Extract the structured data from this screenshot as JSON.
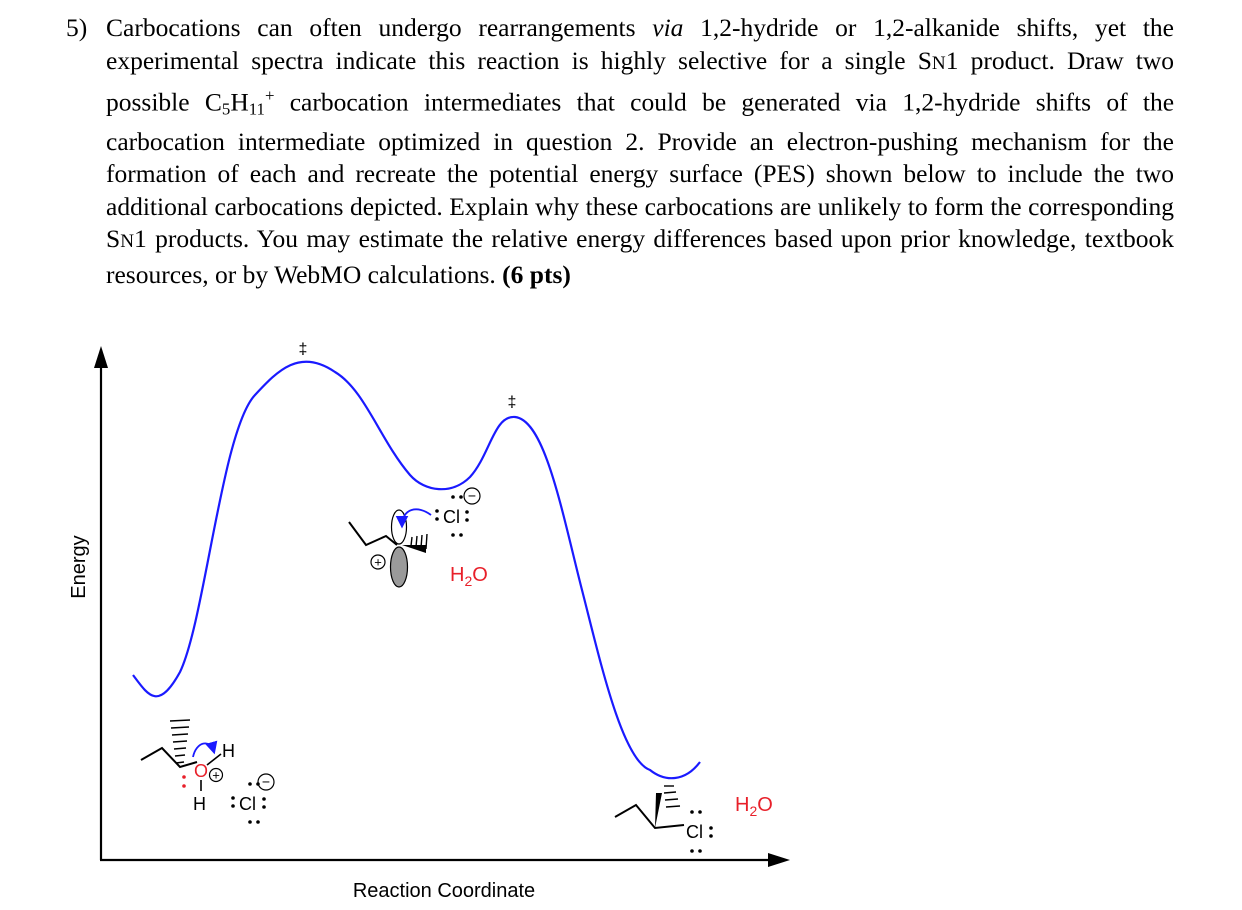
{
  "question": {
    "number": "5)",
    "seg1": "Carbocations can often undergo rearrangements ",
    "via": "via",
    "seg2": " 1,2-hydride or 1,2-alkanide shifts, yet the experimental spectra indicate this reaction is highly selective for a single S",
    "n1": "N",
    "seg3": "1 product.  Draw two possible C",
    "c_sub": "5",
    "h": "H",
    "h_sub": "11",
    "plus": "+",
    "seg4": " carbocation intermediates that could be generated via 1,2-hydride shifts of the carbocation intermediate optimized in question 2.  Provide an electron-pushing mechanism for the formation of each and recreate the potential energy surface (PES) shown below to include the two additional carbocations depicted.  Explain why these carbocations are unlikely to form the corresponding S",
    "n2": "N",
    "seg5": "1 products.  You may estimate the relative energy differences based upon prior knowledge, textbook resources, or by WebMO calculations.  ",
    "points": "(6 pts)"
  },
  "diagram": {
    "y_axis_label": "Energy",
    "x_axis_label": "Reaction Coordinate",
    "ts_mark": "‡",
    "chloride": "Cl",
    "chlorine": "Cl",
    "oxygen": "O",
    "hydrogen": "H",
    "water_h": "H",
    "water_sub": "2",
    "water_o": "O",
    "plus_sign": "+",
    "minus_sign": "−",
    "colors": {
      "curve": "#1a1aff",
      "arrow": "#1a1aff",
      "heteroatom": "#e8202a",
      "ink": "#000000"
    }
  }
}
